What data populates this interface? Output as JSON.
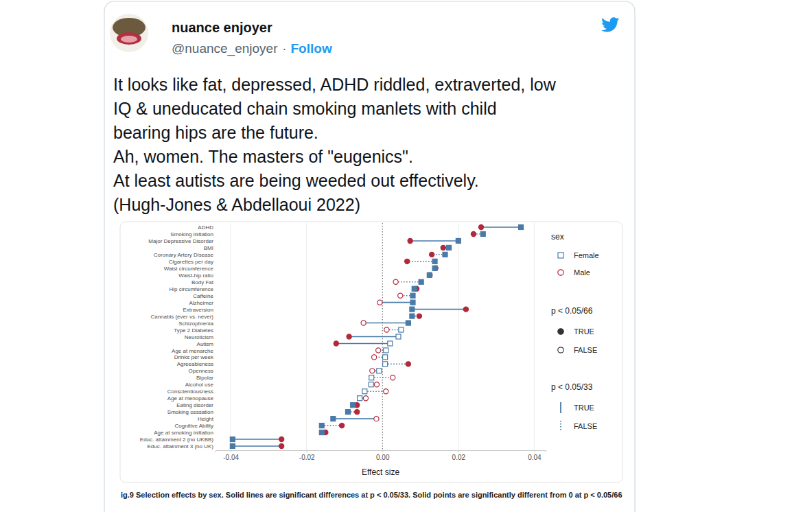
{
  "tweet": {
    "name": "nuance enjoyer",
    "handle": "@nuance_enjoyer",
    "separator": "·",
    "follow": "Follow",
    "text": [
      "It looks like fat, depressed, ADHD riddled, extraverted, low",
      "IQ & uneducated chain smoking manlets with child",
      "bearing hips are the future.",
      "Ah, women. The masters of \"eugenics\".",
      "At least autists are being weeded out effectively.",
      "(Hugh-Jones & Abdellaoui 2022)"
    ]
  },
  "chart_data": {
    "type": "dot",
    "x_label": "Effect size",
    "caption": "ig.9 Selection effects by sex. Solid lines are significant differences at p < 0.05/33. Solid points are significantly different from 0 at p < 0.05/66",
    "categories": [
      "ADHD",
      "Smoking initiation",
      "Major Depressive Disorder",
      "BMI",
      "Coronary Artery Disease",
      "Cigarettes per day",
      "Waist circumference",
      "Waist-hip ratio",
      "Body Fat",
      "Hip circumference",
      "Caffeine",
      "Alzheimer",
      "Extraversion",
      "Cannabis (ever vs. never)",
      "Schizophrenia",
      "Type 2 Diabetes",
      "Neuroticism",
      "Autism",
      "Age at menarche",
      "Drinks per week",
      "Agreeableness",
      "Openness",
      "Bipolar",
      "Alcohol use",
      "Conscientiousness",
      "Age at menopause",
      "Eating disorder",
      "Smoking cessation",
      "Height",
      "Cognitive Ability",
      "Age at smoking initiation",
      "Educ. attainment 2 (no UKBB)",
      "Educ. attainment 3 (no UK)"
    ],
    "series": [
      {
        "name": "Female",
        "color": "#4a7aa7",
        "marker": "square",
        "values": [
          0.0365,
          0.0265,
          0.02,
          0.0175,
          0.0165,
          0.0138,
          0.0138,
          0.0124,
          0.0102,
          0.0084,
          0.008,
          0.008,
          0.0078,
          0.0078,
          0.0068,
          0.0049,
          0.0042,
          0.002,
          0.0009,
          0.0007,
          0.0007,
          -0.0009,
          -0.0029,
          -0.003,
          -0.0047,
          -0.006,
          -0.0078,
          -0.0091,
          -0.013,
          -0.016,
          -0.016,
          -0.0395,
          -0.0395
        ],
        "significant": [
          true,
          true,
          true,
          true,
          true,
          true,
          true,
          true,
          true,
          true,
          true,
          true,
          true,
          true,
          true,
          false,
          false,
          false,
          false,
          false,
          false,
          false,
          false,
          false,
          false,
          false,
          true,
          true,
          true,
          true,
          true,
          true,
          true
        ]
      },
      {
        "name": "Male",
        "color": "#b3283a",
        "marker": "circle",
        "values": [
          0.026,
          0.024,
          0.0073,
          0.016,
          0.013,
          0.0065,
          0.014,
          0.0125,
          0.0035,
          0.009,
          0.0047,
          -0.0007,
          0.022,
          0.0097,
          -0.005,
          0.0011,
          -0.0088,
          -0.0122,
          -0.0011,
          -0.0022,
          0.0068,
          -0.0027,
          0.0027,
          -0.0015,
          0.0009,
          -0.0044,
          -0.0067,
          -0.0067,
          -0.0016,
          -0.0107,
          -0.015,
          -0.0266,
          -0.0266
        ],
        "significant": [
          true,
          true,
          true,
          true,
          true,
          true,
          true,
          true,
          false,
          true,
          false,
          false,
          true,
          true,
          false,
          false,
          true,
          true,
          false,
          false,
          true,
          false,
          false,
          false,
          false,
          false,
          true,
          true,
          false,
          true,
          true,
          true,
          true
        ]
      }
    ],
    "difference_significant": [
      true,
      false,
      true,
      false,
      false,
      false,
      false,
      false,
      false,
      false,
      false,
      true,
      true,
      false,
      true,
      false,
      true,
      true,
      false,
      false,
      false,
      false,
      false,
      false,
      false,
      false,
      false,
      false,
      true,
      false,
      false,
      true,
      true
    ],
    "xlim": [
      -0.044,
      0.043
    ],
    "xticks": [
      {
        "value": -0.04,
        "label": "-0.04"
      },
      {
        "value": -0.02,
        "label": "-0.02"
      },
      {
        "value": 0,
        "label": "0.00"
      },
      {
        "value": 0.02,
        "label": "0.02"
      },
      {
        "value": 0.04,
        "label": "0.04"
      }
    ],
    "grid": true,
    "legend": "right",
    "legend_title": "sex",
    "significance_legends": [
      {
        "title": "p < 0.05/66",
        "entries": [
          "TRUE",
          "FALSE"
        ]
      },
      {
        "title": "p < 0.05/33",
        "entries": [
          "TRUE",
          "FALSE"
        ]
      }
    ]
  }
}
